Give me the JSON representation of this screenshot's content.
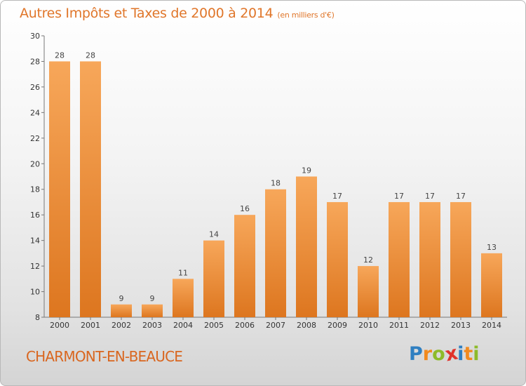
{
  "title": "Autres Impôts et Taxes de 2000 à 2014",
  "unit": "(en milliers d'€)",
  "city": "CHARMONT-EN-BEAUCE",
  "logo": {
    "letters": [
      "P",
      "r",
      "o",
      "x",
      "i",
      "t",
      "i"
    ],
    "colors": [
      "#2f7fc1",
      "#f28a1e",
      "#8dbb2a",
      "#e0332b",
      "#2f7fc1",
      "#f28a1e",
      "#8dbb2a"
    ]
  },
  "colors": {
    "accent": "#e0762a",
    "bar_light": "#f7a75a",
    "bar_dark": "#dd761f"
  },
  "chart_data": {
    "type": "bar",
    "categories": [
      "2000",
      "2001",
      "2002",
      "2003",
      "2004",
      "2005",
      "2006",
      "2007",
      "2008",
      "2009",
      "2010",
      "2011",
      "2012",
      "2013",
      "2014"
    ],
    "values": [
      28,
      28,
      9,
      9,
      11,
      14,
      16,
      18,
      19,
      17,
      12,
      17,
      17,
      17,
      13
    ],
    "ylim": [
      8,
      30
    ],
    "yticks": [
      8,
      10,
      12,
      14,
      16,
      18,
      20,
      22,
      24,
      26,
      28,
      30
    ],
    "grid": false
  }
}
